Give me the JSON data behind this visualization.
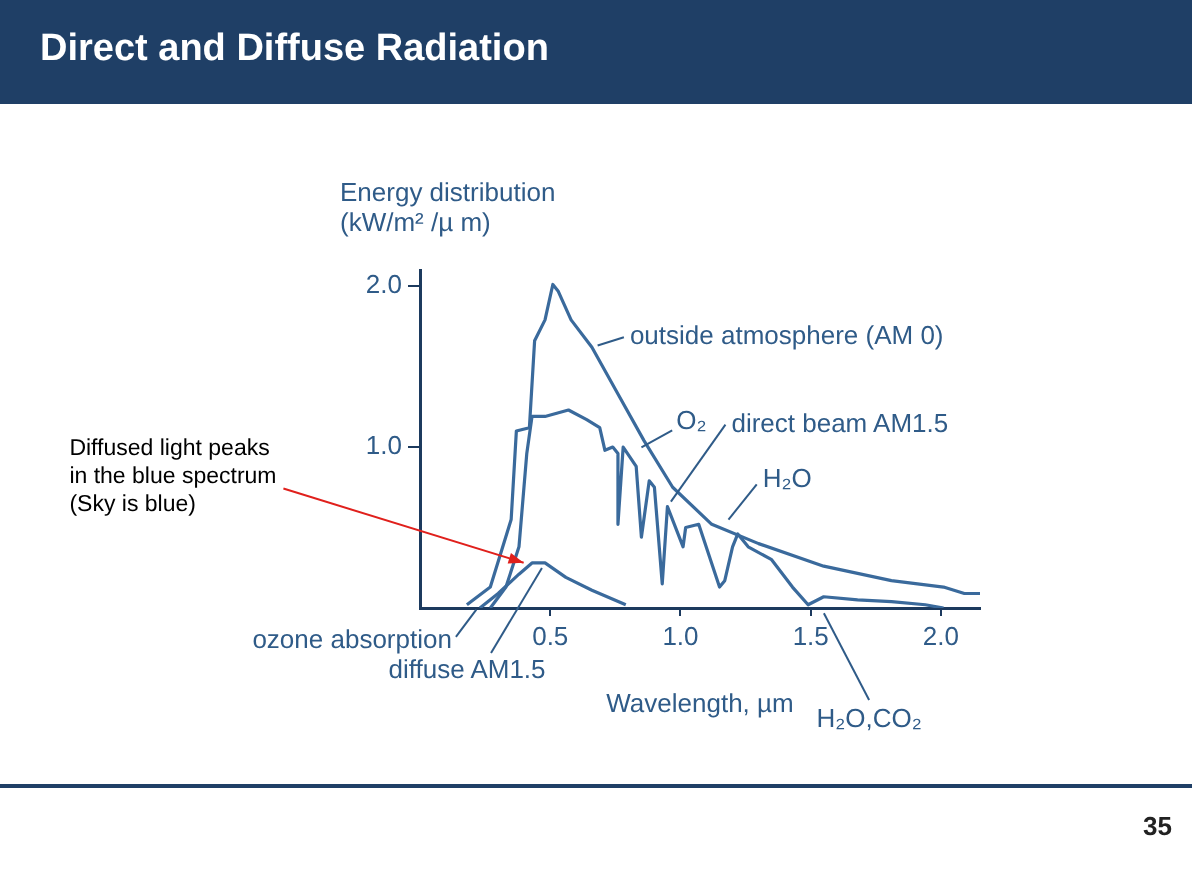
{
  "chart_data": {
    "type": "line",
    "title": "Direct and Diffuse Radiation",
    "xlabel": "Wavelength, µm",
    "ylabel": "Energy distribution (kW/m² /µ m)",
    "xlim": [
      0,
      2.15
    ],
    "xticks": [
      {
        "value": 0.5,
        "label": "0.5"
      },
      {
        "value": 1,
        "label": "1.0"
      },
      {
        "value": 1.5,
        "label": "1.5"
      },
      {
        "value": 2,
        "label": "2.0"
      }
    ],
    "ylim": [
      0,
      2.1
    ],
    "yticks": [
      {
        "value": 1,
        "label": "1.0"
      },
      {
        "value": 2,
        "label": "2.0"
      }
    ],
    "grid": false,
    "marker": "none",
    "line_style": "solid",
    "series": [
      {
        "color": "#3a6a9c",
        "x": [
          0.18,
          0.27,
          0.35,
          0.37,
          0.42,
          0.44,
          0.48,
          0.51,
          0.53,
          0.58,
          0.66,
          0.76,
          0.86,
          0.97,
          1.12,
          1.3,
          1.55,
          1.81,
          2.01,
          2.09,
          2.15
        ],
        "values": [
          0.02,
          0.13,
          0.55,
          1.1,
          1.12,
          1.66,
          1.79,
          2.01,
          1.97,
          1.79,
          1.62,
          1.33,
          1.04,
          0.75,
          0.52,
          0.4,
          0.26,
          0.17,
          0.13,
          0.09,
          0.09
        ]
      },
      {
        "color": "#3a6a9c",
        "x": [
          0.27,
          0.33,
          0.38,
          0.41,
          0.43,
          0.48,
          0.57,
          0.64,
          0.69,
          0.71,
          0.74,
          0.76,
          0.76,
          0.78,
          0.83,
          0.85,
          0.88,
          0.9,
          0.93,
          0.95,
          1.01,
          1.02,
          1.07,
          1.15,
          1.17,
          1.2,
          1.22,
          1.26,
          1.35,
          1.43,
          1.49,
          1.55,
          1.68,
          1.81,
          1.94,
          2.01
        ],
        "values": [
          0,
          0.13,
          0.38,
          0.96,
          1.19,
          1.19,
          1.23,
          1.17,
          1.12,
          0.98,
          1.0,
          0.96,
          0.52,
          1.0,
          0.88,
          0.44,
          0.79,
          0.75,
          0.15,
          0.63,
          0.38,
          0.5,
          0.52,
          0.13,
          0.17,
          0.38,
          0.46,
          0.38,
          0.3,
          0.13,
          0.02,
          0.07,
          0.05,
          0.04,
          0.02,
          0
        ]
      },
      {
        "color": "#3a6a9c",
        "x": [
          0.23,
          0.3,
          0.38,
          0.43,
          0.48,
          0.56,
          0.66,
          0.79
        ],
        "values": [
          0,
          0.09,
          0.21,
          0.28,
          0.28,
          0.19,
          0.11,
          0.02
        ]
      }
    ],
    "annotations": [
      {
        "text": "outside atmosphere (AM 0)",
        "x": 0.66,
        "y": 1.62
      },
      {
        "text": "direct beam AM1.5",
        "x": 0.95,
        "y": 0.63
      },
      {
        "text": "diffuse AM1.5",
        "x": 0.48,
        "y": 0.28
      },
      {
        "text": "O₂",
        "x": 0.83,
        "y": 0.98
      },
      {
        "text": "H₂O",
        "x": 1.17,
        "y": 0.52
      },
      {
        "text": "H₂O,CO₂",
        "x": 1.54,
        "y": 0
      },
      {
        "text": "ozone absorption",
        "x": 0.23,
        "y": 0.02
      },
      {
        "text": "Diffused light peaks in the blue spectrum (Sky is blue)",
        "x": 0.42,
        "y": 0.27
      },
      "35"
    ]
  }
}
